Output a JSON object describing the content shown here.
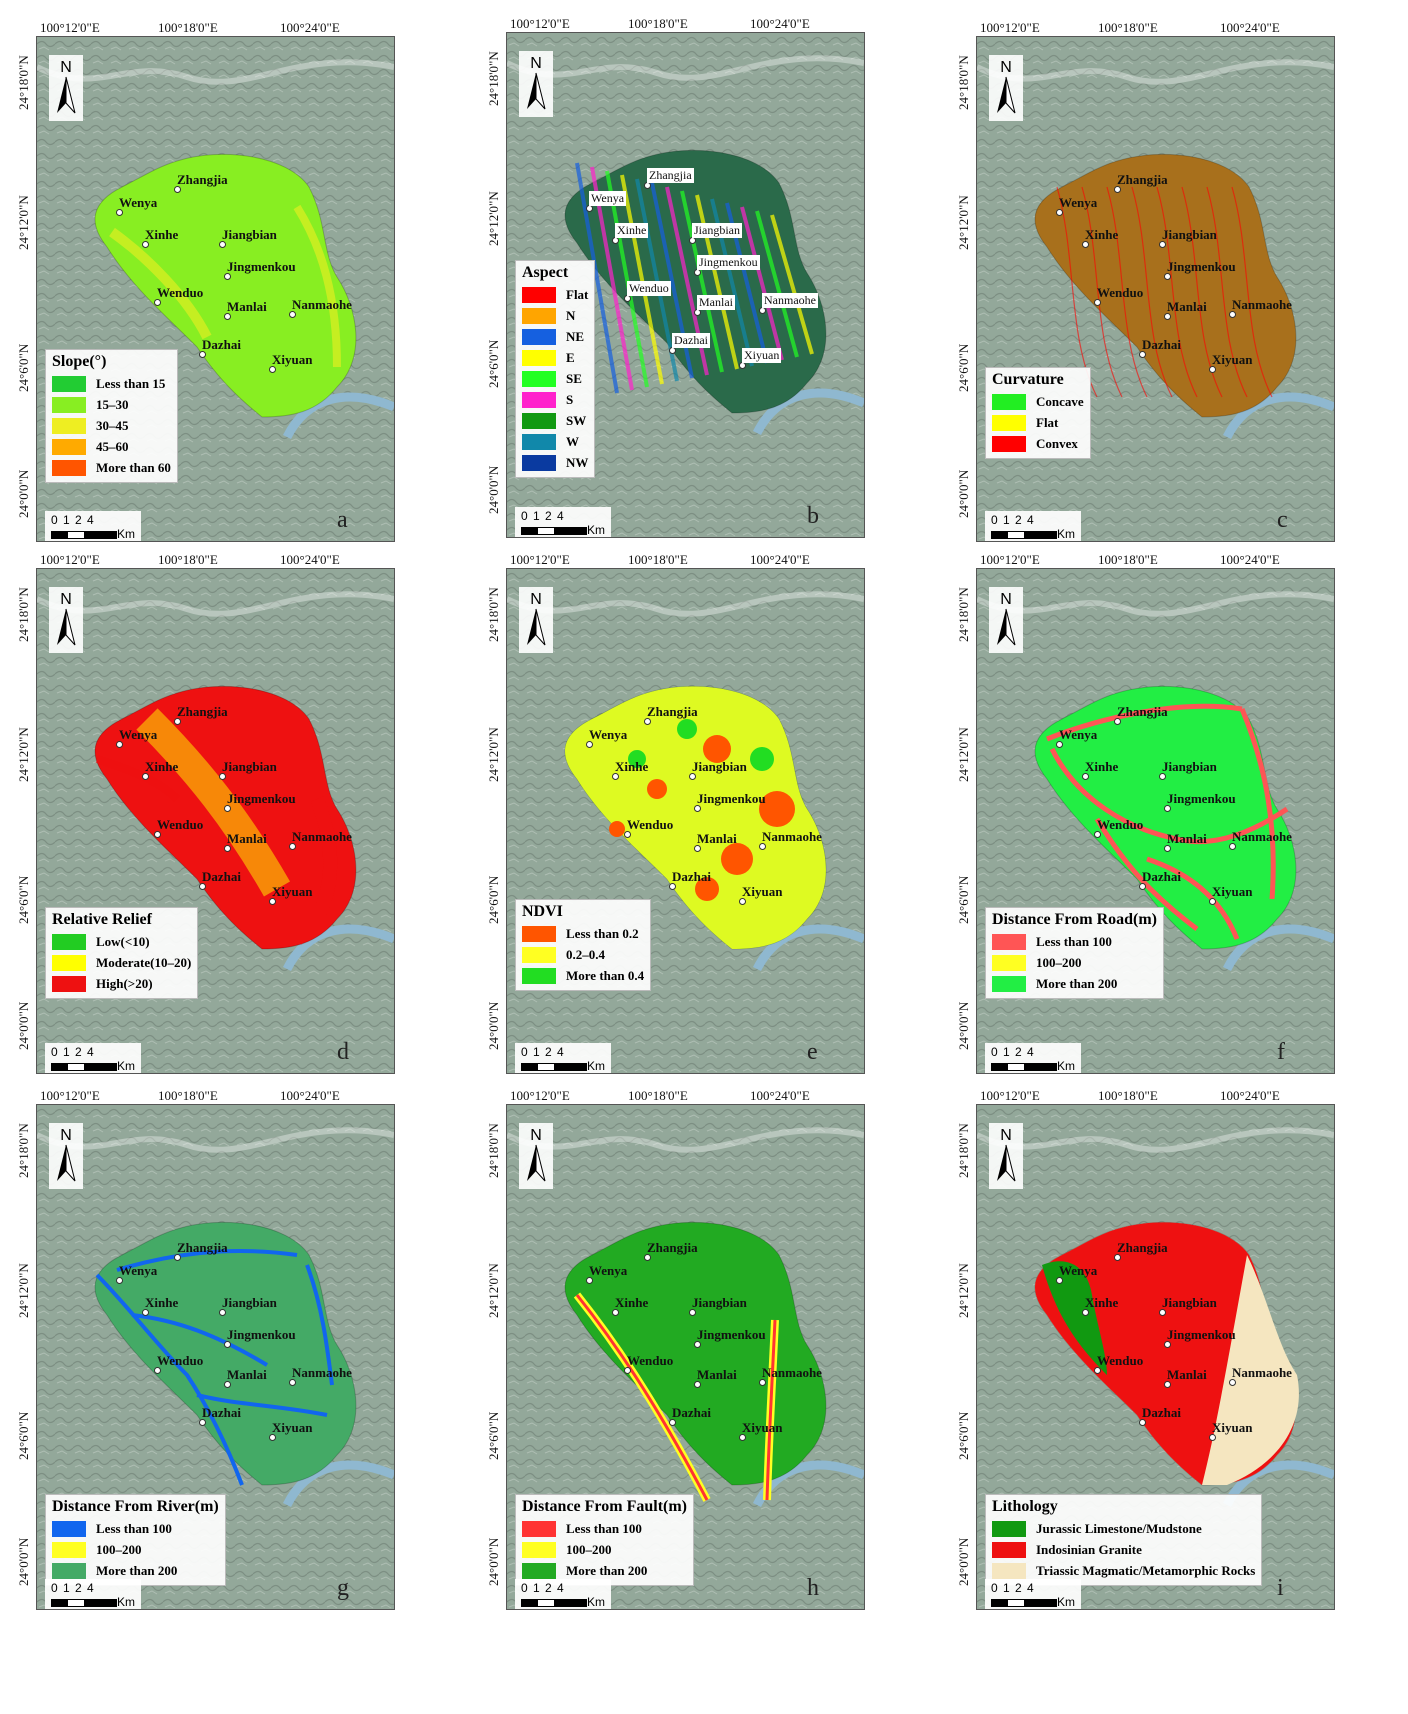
{
  "coords": {
    "lon": [
      "100°12'0\"E",
      "100°18'0\"E",
      "100°24'0\"E"
    ],
    "lat": [
      "24°18'0\"N",
      "24°12'0\"N",
      "24°6'0\"N",
      "24°0'0\"N"
    ]
  },
  "north": "N",
  "scale": {
    "nums": "0 1 2   4",
    "unit": "Km"
  },
  "towns": [
    "Zhangjia",
    "Wenya",
    "Xinhe",
    "Jiangbian",
    "Jingmenkou",
    "Wenduo",
    "Manlai",
    "Nanmaohe",
    "Dazhai",
    "Xiyuan"
  ],
  "panels": [
    {
      "letter": "a",
      "title": "Slope(°)",
      "items": [
        {
          "label": "Less than 15",
          "color": "#22cc33"
        },
        {
          "label": "15–30",
          "color": "#88ee22"
        },
        {
          "label": "30–45",
          "color": "#eeee22"
        },
        {
          "label": "45–60",
          "color": "#ffaa00"
        },
        {
          "label": "More than 60",
          "color": "#ff5500"
        }
      ]
    },
    {
      "letter": "b",
      "title": "Aspect",
      "items": [
        {
          "label": "Flat",
          "color": "#ff0000"
        },
        {
          "label": "N",
          "color": "#ffa500"
        },
        {
          "label": "NE",
          "color": "#1560e0"
        },
        {
          "label": "E",
          "color": "#ffff00"
        },
        {
          "label": "SE",
          "color": "#22ff22"
        },
        {
          "label": "S",
          "color": "#ff22cc"
        },
        {
          "label": "SW",
          "color": "#119911"
        },
        {
          "label": "W",
          "color": "#1188aa"
        },
        {
          "label": "NW",
          "color": "#0a3aa0"
        }
      ]
    },
    {
      "letter": "c",
      "title": "Curvature",
      "items": [
        {
          "label": "Concave",
          "color": "#22ee22"
        },
        {
          "label": "Flat",
          "color": "#ffff00"
        },
        {
          "label": "Convex",
          "color": "#ff0000"
        }
      ]
    },
    {
      "letter": "d",
      "title": "Relative Relief",
      "items": [
        {
          "label": "Low(<10)",
          "color": "#22cc22"
        },
        {
          "label": "Moderate(10–20)",
          "color": "#ffff00"
        },
        {
          "label": "High(>20)",
          "color": "#ee1111"
        }
      ]
    },
    {
      "letter": "e",
      "title": "NDVI",
      "items": [
        {
          "label": "Less than 0.2",
          "color": "#ff5500"
        },
        {
          "label": "0.2–0.4",
          "color": "#ffff22"
        },
        {
          "label": "More than 0.4",
          "color": "#22dd22"
        }
      ]
    },
    {
      "letter": "f",
      "title": "Distance From Road(m)",
      "items": [
        {
          "label": "Less than 100",
          "color": "#ff5555"
        },
        {
          "label": "100–200",
          "color": "#ffff22"
        },
        {
          "label": "More than 200",
          "color": "#22ee44"
        }
      ]
    },
    {
      "letter": "g",
      "title": "Distance From River(m)",
      "items": [
        {
          "label": "Less than 100",
          "color": "#1166ee"
        },
        {
          "label": "100–200",
          "color": "#ffff22"
        },
        {
          "label": "More than 200",
          "color": "#44aa66"
        }
      ]
    },
    {
      "letter": "h",
      "title": "Distance From Fault(m)",
      "items": [
        {
          "label": "Less than 100",
          "color": "#ff3333"
        },
        {
          "label": "100–200",
          "color": "#ffff22"
        },
        {
          "label": "More than 200",
          "color": "#22aa22"
        }
      ]
    },
    {
      "letter": "i",
      "title": "Lithology",
      "items": [
        {
          "label": "Jurassic Limestone/Mudstone",
          "color": "#119911"
        },
        {
          "label": "Indosinian Granite",
          "color": "#ee1111"
        },
        {
          "label": "Triassic Magmatic/Metamorphic Rocks",
          "color": "#f5e6c0"
        }
      ]
    }
  ]
}
